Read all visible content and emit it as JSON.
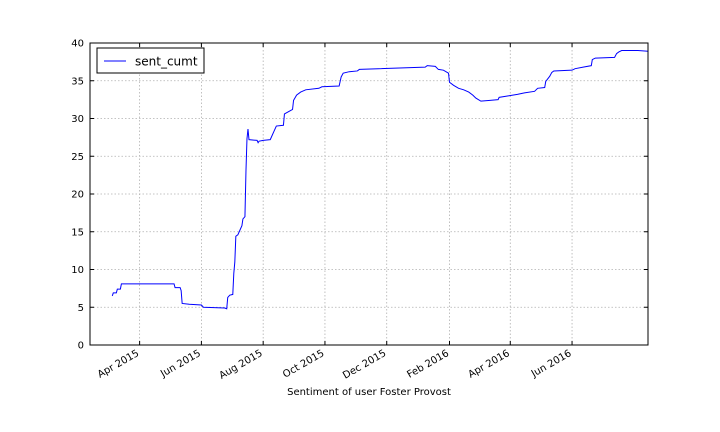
{
  "chart_data": {
    "type": "line",
    "title": "",
    "xlabel": "Sentiment of user Foster Provost",
    "ylabel": "",
    "ylim": [
      0,
      40
    ],
    "xlim": [
      "2015-02-11",
      "2016-08-15"
    ],
    "yticks": [
      0,
      5,
      10,
      15,
      20,
      25,
      30,
      35,
      40
    ],
    "xticks": [
      {
        "date": "2015-04-01",
        "label": "Apr 2015"
      },
      {
        "date": "2015-06-01",
        "label": "Jun 2015"
      },
      {
        "date": "2015-08-01",
        "label": "Aug 2015"
      },
      {
        "date": "2015-10-01",
        "label": "Oct 2015"
      },
      {
        "date": "2015-12-01",
        "label": "Dec 2015"
      },
      {
        "date": "2016-02-01",
        "label": "Feb 2016"
      },
      {
        "date": "2016-04-01",
        "label": "Apr 2016"
      },
      {
        "date": "2016-06-01",
        "label": "Jun 2016"
      }
    ],
    "grid": true,
    "legend": {
      "placement": "top-left"
    },
    "series": [
      {
        "name": "sent_cumt",
        "color": "#0000ff",
        "points": [
          [
            "2015-03-05",
            6.5
          ],
          [
            "2015-03-06",
            6.9
          ],
          [
            "2015-03-09",
            6.9
          ],
          [
            "2015-03-10",
            7.4
          ],
          [
            "2015-03-13",
            7.4
          ],
          [
            "2015-03-14",
            8.1
          ],
          [
            "2015-05-05",
            8.1
          ],
          [
            "2015-05-06",
            7.6
          ],
          [
            "2015-05-11",
            7.6
          ],
          [
            "2015-05-12",
            7.2
          ],
          [
            "2015-05-13",
            5.5
          ],
          [
            "2015-05-20",
            5.4
          ],
          [
            "2015-06-01",
            5.3
          ],
          [
            "2015-06-03",
            5.0
          ],
          [
            "2015-06-24",
            4.9
          ],
          [
            "2015-06-26",
            4.8
          ],
          [
            "2015-06-27",
            6.3
          ],
          [
            "2015-06-29",
            6.6
          ],
          [
            "2015-07-02",
            6.7
          ],
          [
            "2015-07-03",
            9.5
          ],
          [
            "2015-07-04",
            11.0
          ],
          [
            "2015-07-05",
            14.4
          ],
          [
            "2015-07-07",
            14.6
          ],
          [
            "2015-07-09",
            15.2
          ],
          [
            "2015-07-11",
            15.8
          ],
          [
            "2015-07-12",
            16.7
          ],
          [
            "2015-07-14",
            17.0
          ],
          [
            "2015-07-15",
            23.0
          ],
          [
            "2015-07-16",
            27.3
          ],
          [
            "2015-07-17",
            28.6
          ],
          [
            "2015-07-18",
            27.2
          ],
          [
            "2015-07-26",
            27.1
          ],
          [
            "2015-07-27",
            26.8
          ],
          [
            "2015-07-28",
            27.0
          ],
          [
            "2015-08-01",
            27.1
          ],
          [
            "2015-08-08",
            27.2
          ],
          [
            "2015-08-09",
            27.5
          ],
          [
            "2015-08-12",
            28.4
          ],
          [
            "2015-08-14",
            29.0
          ],
          [
            "2015-08-21",
            29.1
          ],
          [
            "2015-08-22",
            30.6
          ],
          [
            "2015-08-26",
            30.9
          ],
          [
            "2015-08-30",
            31.2
          ],
          [
            "2015-08-31",
            32.4
          ],
          [
            "2015-09-03",
            33.1
          ],
          [
            "2015-09-07",
            33.5
          ],
          [
            "2015-09-12",
            33.8
          ],
          [
            "2015-09-25",
            34.0
          ],
          [
            "2015-09-28",
            34.2
          ],
          [
            "2015-10-15",
            34.3
          ],
          [
            "2015-10-17",
            35.5
          ],
          [
            "2015-10-19",
            36.0
          ],
          [
            "2015-10-25",
            36.2
          ],
          [
            "2015-11-02",
            36.3
          ],
          [
            "2015-11-04",
            36.5
          ],
          [
            "2016-01-08",
            36.8
          ],
          [
            "2016-01-10",
            37.0
          ],
          [
            "2016-01-18",
            36.9
          ],
          [
            "2016-01-21",
            36.5
          ],
          [
            "2016-01-26",
            36.4
          ],
          [
            "2016-01-31",
            36.0
          ],
          [
            "2016-02-01",
            34.8
          ],
          [
            "2016-02-05",
            34.4
          ],
          [
            "2016-02-10",
            34.0
          ],
          [
            "2016-02-15",
            33.8
          ],
          [
            "2016-02-20",
            33.5
          ],
          [
            "2016-02-24",
            33.1
          ],
          [
            "2016-02-27",
            32.7
          ],
          [
            "2016-03-03",
            32.3
          ],
          [
            "2016-03-12",
            32.4
          ],
          [
            "2016-03-20",
            32.5
          ],
          [
            "2016-03-21",
            32.8
          ],
          [
            "2016-03-30",
            33.0
          ],
          [
            "2016-04-08",
            33.2
          ],
          [
            "2016-04-15",
            33.4
          ],
          [
            "2016-04-25",
            33.6
          ],
          [
            "2016-04-28",
            34.0
          ],
          [
            "2016-05-05",
            34.1
          ],
          [
            "2016-05-06",
            34.9
          ],
          [
            "2016-05-10",
            35.6
          ],
          [
            "2016-05-12",
            36.1
          ],
          [
            "2016-05-14",
            36.3
          ],
          [
            "2016-06-01",
            36.4
          ],
          [
            "2016-06-04",
            36.6
          ],
          [
            "2016-06-12",
            36.8
          ],
          [
            "2016-06-20",
            37.0
          ],
          [
            "2016-06-21",
            37.8
          ],
          [
            "2016-06-24",
            38.0
          ],
          [
            "2016-07-13",
            38.1
          ],
          [
            "2016-07-15",
            38.6
          ],
          [
            "2016-07-17",
            38.8
          ],
          [
            "2016-07-20",
            39.0
          ],
          [
            "2016-08-05",
            39.0
          ],
          [
            "2016-08-15",
            38.9
          ]
        ]
      }
    ]
  }
}
